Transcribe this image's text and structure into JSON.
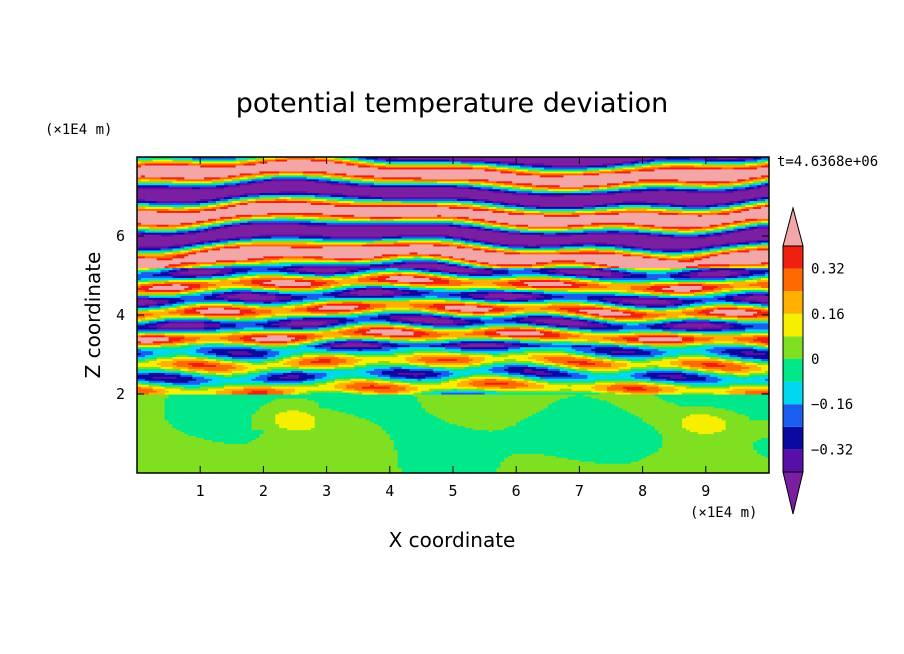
{
  "chart_data": {
    "type": "heatmap",
    "title": "potential temperature deviation",
    "xlabel": "X coordinate",
    "ylabel": "Z coordinate",
    "x_unit": "(×1E4 m)",
    "y_unit": "(×1E4 m)",
    "time_label": "t=4.6368e+06",
    "xlim": [
      0,
      10
    ],
    "ylim": [
      0,
      8
    ],
    "x_ticks": [
      "1",
      "2",
      "3",
      "4",
      "5",
      "6",
      "7",
      "8",
      "9"
    ],
    "y_ticks": [
      "2",
      "4",
      "6"
    ],
    "colorbar": {
      "levels": [
        -0.4,
        -0.32,
        -0.24,
        -0.16,
        -0.08,
        0,
        0.08,
        0.16,
        0.24,
        0.32,
        0.4
      ],
      "tick_labels": [
        "0.32",
        "0.16",
        "0",
        "-0.16",
        "-0.32"
      ],
      "under_color": "#7b1fa2",
      "over_color": "#f4a6a6",
      "colors": [
        "#5a0ea8",
        "#0a0aa0",
        "#1a5ef0",
        "#00d8f0",
        "#00e88a",
        "#7ee020",
        "#f6f000",
        "#ffb000",
        "#ff6a00",
        "#f02010"
      ]
    },
    "regions": [
      {
        "z_range": [
          0,
          2
        ],
        "description_values": "near-zero band (-0.08 to 0.08)"
      },
      {
        "z_range": [
          2,
          5.5
        ],
        "description_values": "mixed oscillations"
      },
      {
        "z_range": [
          5.5,
          8
        ],
        "description_values": "alternating strong positive/negative layers"
      }
    ]
  }
}
